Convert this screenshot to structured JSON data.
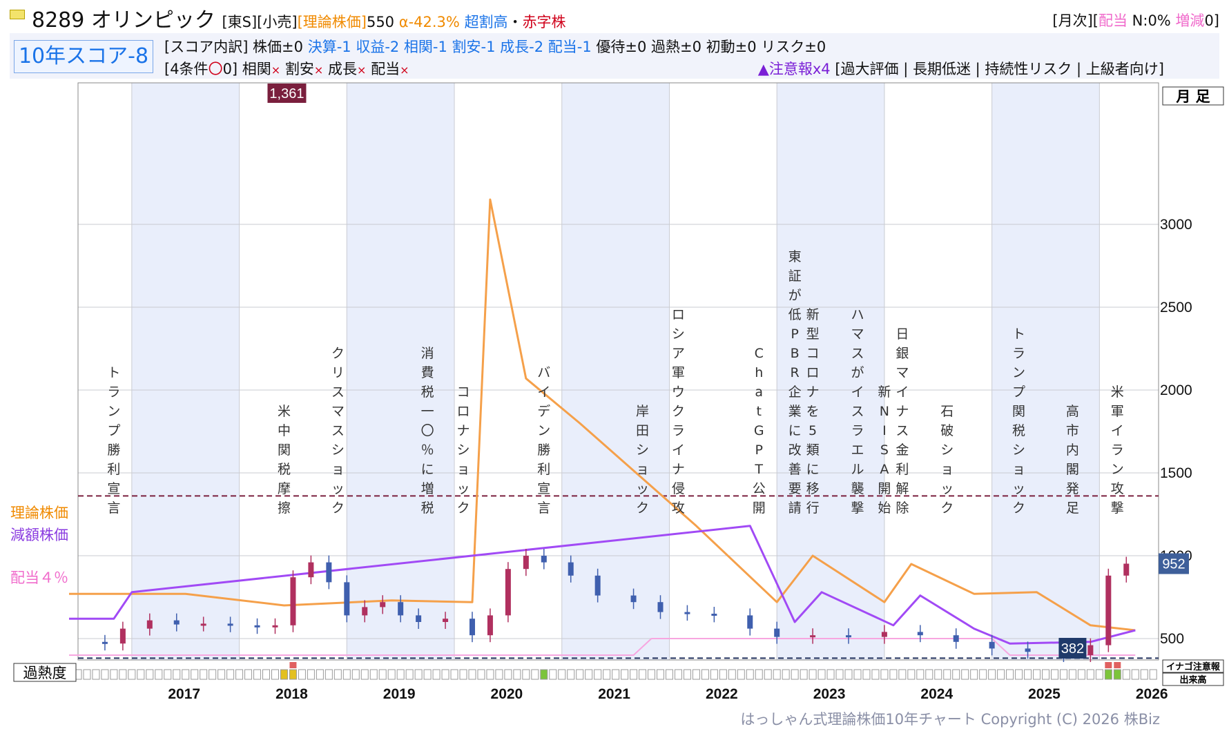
{
  "header": {
    "flag_icon": "flag-icon",
    "code": "8289",
    "name": "オリンピック",
    "market": "[東S]",
    "sector": "[小売]",
    "theory_label": "[理論株価]",
    "theory_value": "550",
    "alpha": "α-42.3%",
    "valuation": "超割高",
    "dot": "・",
    "deficit": "赤字株",
    "right_bracket_open": "[月次][",
    "dividend_label": "配当",
    "dividend_value": " N:0% ",
    "change_label": "増減",
    "change_value": "0]",
    "score_label": "10年スコア-8",
    "breakdown": [
      {
        "text": "[スコア内訳] 株価±0 ",
        "color": "#111111"
      },
      {
        "text": "決算-1 収益-2 相関-1 割安-1 成長-2 配当-1 ",
        "color": "#1a73e8"
      },
      {
        "text": "優待±0 過熱±0 初動±0 リスク±0",
        "color": "#111111"
      }
    ],
    "conditions_prefix": "[4条件",
    "conditions_circle": "〇",
    "conditions_count": "0] ",
    "conditions": [
      "相関",
      "割安",
      "成長",
      "配当"
    ],
    "cross_mark": "×",
    "warning": "▲注意報x4",
    "warning_tags": " [過大評価 | 長期低迷 | 持続性リスク | 上級者向け]"
  },
  "side_labels": {
    "theory": "理論株価",
    "reduced": "減額株価",
    "dividend": "配当４％",
    "period": "月 足",
    "overheat": "過熱度",
    "inago": "イナゴ注意報",
    "volume": "出来高"
  },
  "footer": "はっしゃん式理論株価10年チャート Copyright (C) 2026 株Biz",
  "colors": {
    "theory": "#f5a04a",
    "reduced": "#a14af5",
    "dividend": "#f7a6e0",
    "up": "#b0305f",
    "down": "#3f5fae",
    "band": "#e9eefb",
    "max_line": "#7a1f3d",
    "min_line": "#1f2f5a"
  },
  "chart_data": {
    "type": "candlestick",
    "title": "8289 オリンピック",
    "frequency": "monthly",
    "x_years": [
      "2017",
      "2018",
      "2019",
      "2020",
      "2021",
      "2022",
      "2023",
      "2024",
      "2025",
      "2026"
    ],
    "y_ticks": [
      500,
      1000,
      1500,
      2000,
      2500,
      3000
    ],
    "ylim": [
      0,
      3400
    ],
    "max_label": "1,361",
    "min_label": "382",
    "current_label": "952",
    "max_value": 1361,
    "min_value": 382,
    "current_value": 952,
    "close_series": [
      {
        "date": "2016-06",
        "value": 480
      },
      {
        "date": "2016-10",
        "value": 470
      },
      {
        "date": "2016-12",
        "value": 560
      },
      {
        "date": "2017-03",
        "value": 610
      },
      {
        "date": "2017-06",
        "value": 585
      },
      {
        "date": "2017-09",
        "value": 590
      },
      {
        "date": "2017-12",
        "value": 580
      },
      {
        "date": "2018-03",
        "value": 570
      },
      {
        "date": "2018-05",
        "value": 580
      },
      {
        "date": "2018-07",
        "value": 870
      },
      {
        "date": "2018-09",
        "value": 960
      },
      {
        "date": "2018-11",
        "value": 840
      },
      {
        "date": "2019-01",
        "value": 640
      },
      {
        "date": "2019-03",
        "value": 690
      },
      {
        "date": "2019-05",
        "value": 720
      },
      {
        "date": "2019-07",
        "value": 640
      },
      {
        "date": "2019-09",
        "value": 600
      },
      {
        "date": "2019-12",
        "value": 620
      },
      {
        "date": "2020-03",
        "value": 520
      },
      {
        "date": "2020-05",
        "value": 640
      },
      {
        "date": "2020-07",
        "value": 920
      },
      {
        "date": "2020-09",
        "value": 1000
      },
      {
        "date": "2020-11",
        "value": 960
      },
      {
        "date": "2021-02",
        "value": 880
      },
      {
        "date": "2021-05",
        "value": 760
      },
      {
        "date": "2021-09",
        "value": 720
      },
      {
        "date": "2021-12",
        "value": 660
      },
      {
        "date": "2022-03",
        "value": 650
      },
      {
        "date": "2022-06",
        "value": 640
      },
      {
        "date": "2022-10",
        "value": 560
      },
      {
        "date": "2023-01",
        "value": 510
      },
      {
        "date": "2023-05",
        "value": 520
      },
      {
        "date": "2023-09",
        "value": 510
      },
      {
        "date": "2024-01",
        "value": 540
      },
      {
        "date": "2024-05",
        "value": 520
      },
      {
        "date": "2024-09",
        "value": 480
      },
      {
        "date": "2025-01",
        "value": 440
      },
      {
        "date": "2025-05",
        "value": 420
      },
      {
        "date": "2025-09",
        "value": 400
      },
      {
        "date": "2025-12",
        "value": 460
      },
      {
        "date": "2026-02",
        "value": 880
      },
      {
        "date": "2026-04",
        "value": 952
      }
    ],
    "series": [
      {
        "name": "理論株価",
        "points": [
          {
            "date": "2016-06",
            "value": 770
          },
          {
            "date": "2017-07",
            "value": 770
          },
          {
            "date": "2018-06",
            "value": 700
          },
          {
            "date": "2019-06",
            "value": 730
          },
          {
            "date": "2020-03",
            "value": 720
          },
          {
            "date": "2020-05",
            "value": 3150
          },
          {
            "date": "2020-09",
            "value": 2070
          },
          {
            "date": "2021-03",
            "value": 1800
          },
          {
            "date": "2022-04",
            "value": 1180
          },
          {
            "date": "2023-01",
            "value": 720
          },
          {
            "date": "2023-05",
            "value": 1000
          },
          {
            "date": "2024-01",
            "value": 720
          },
          {
            "date": "2024-04",
            "value": 950
          },
          {
            "date": "2024-11",
            "value": 770
          },
          {
            "date": "2025-06",
            "value": 780
          },
          {
            "date": "2025-12",
            "value": 580
          },
          {
            "date": "2026-05",
            "value": 550
          }
        ]
      },
      {
        "name": "減額株価",
        "points": [
          {
            "date": "2016-06",
            "value": 620
          },
          {
            "date": "2016-11",
            "value": 620
          },
          {
            "date": "2017-01",
            "value": 780
          },
          {
            "date": "2022-10",
            "value": 1180
          },
          {
            "date": "2023-03",
            "value": 600
          },
          {
            "date": "2023-06",
            "value": 780
          },
          {
            "date": "2024-02",
            "value": 580
          },
          {
            "date": "2024-05",
            "value": 760
          },
          {
            "date": "2024-11",
            "value": 560
          },
          {
            "date": "2025-03",
            "value": 470
          },
          {
            "date": "2025-12",
            "value": 480
          },
          {
            "date": "2026-05",
            "value": 550
          }
        ]
      },
      {
        "name": "配当４％",
        "points": [
          {
            "date": "2016-06",
            "value": 400
          },
          {
            "date": "2021-09",
            "value": 400
          },
          {
            "date": "2021-11",
            "value": 500
          },
          {
            "date": "2025-01",
            "value": 500
          },
          {
            "date": "2025-03",
            "value": 400
          },
          {
            "date": "2026-05",
            "value": 400
          }
        ]
      }
    ],
    "events": [
      {
        "date": "2016-11",
        "label": "トランプ勝利宣言"
      },
      {
        "date": "2018-06",
        "label": "米中関税摩擦"
      },
      {
        "date": "2018-12",
        "label": "クリスマスショック"
      },
      {
        "date": "2019-10",
        "label": "消費税一〇％に増税"
      },
      {
        "date": "2020-02",
        "label": "コロナショック"
      },
      {
        "date": "2020-11",
        "label": "バイデン勝利宣言"
      },
      {
        "date": "2021-10",
        "label": "岸田ショック"
      },
      {
        "date": "2022-02",
        "label": "ロシア軍ウクライナ侵攻"
      },
      {
        "date": "2022-11",
        "label": "ChatGPT公開"
      },
      {
        "date": "2023-03",
        "label": "東証が低PBR企業に改善要請"
      },
      {
        "date": "2023-05",
        "label": "新型コロナを5類に移行"
      },
      {
        "date": "2023-10",
        "label": "ハマスがイスラエル襲撃"
      },
      {
        "date": "2024-01",
        "label": "新NISA開始"
      },
      {
        "date": "2024-03",
        "label": "日銀マイナス金利解除"
      },
      {
        "date": "2024-08",
        "label": "石破ショック"
      },
      {
        "date": "2025-04",
        "label": "トランプ関税ショック"
      },
      {
        "date": "2025-10",
        "label": "高市内閣発足"
      },
      {
        "date": "2026-03",
        "label": "米軍イラン攻撃"
      }
    ],
    "overheat_marks": [
      {
        "date": "2018-06",
        "color": "#e3c020"
      },
      {
        "date": "2018-07",
        "color": "#e3c020"
      },
      {
        "date": "2020-11",
        "color": "#7cc43a"
      },
      {
        "date": "2026-02",
        "color": "#7cc43a"
      },
      {
        "date": "2026-03",
        "color": "#7cc43a"
      }
    ],
    "inago_marks": [
      {
        "date": "2018-07",
        "color": "#e06060"
      },
      {
        "date": "2026-02",
        "color": "#e06060"
      },
      {
        "date": "2026-03",
        "color": "#e06060"
      }
    ]
  }
}
